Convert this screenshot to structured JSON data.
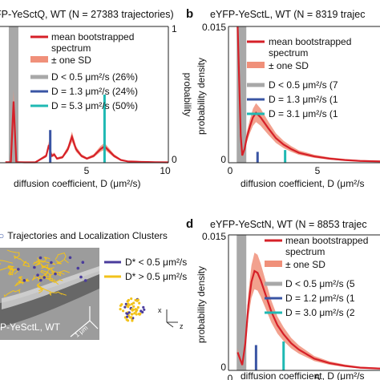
{
  "panels": {
    "a": {
      "letter": "",
      "title": "FP-YeSctQ, WT (N = 27383 trajectories)",
      "ylabel_right": "probability",
      "xlabel": "diffusion coefficient, D (μm²/s)",
      "xtick_labels": [
        "5",
        "10"
      ],
      "ytick_labels": [
        "1",
        "0"
      ],
      "legend": {
        "mean": "mean bootstrapped",
        "mean2": "spectrum",
        "sd": "± one SD",
        "pop1": "D < 0.5   μm²/s (26%)",
        "pop2": "D = 1.3   μm²/s (24%)",
        "pop3": "D = 5.3   μm²/s (50%)"
      }
    },
    "b": {
      "letter": "b",
      "title": "eYFP-YeSctL, WT (N = 8319 trajec",
      "ylabel": "probability density",
      "xlabel": "diffusion coefficient, D (μm²/s",
      "xtick_labels": [
        "0",
        "5"
      ],
      "ytick_labels": [
        "0.015",
        "0"
      ],
      "legend": {
        "mean": "mean bootstrapped",
        "mean2": "spectrum",
        "sd": "± one SD",
        "pop1": "D < 0.5   μm²/s (7",
        "pop2": "D = 1.3   μm²/s (1",
        "pop3": "D = 3.1   μm²/s (1"
      }
    },
    "c": {
      "title": "Trajectories and Localization Clusters",
      "legend1": "D* < 0.5 μm²/s",
      "legend2": "D* > 0.5 μm²/s",
      "cell_label": "P-YeSctL, WT",
      "scale_label": "1 μm",
      "axis_x": "x",
      "axis_z": "z"
    },
    "d": {
      "letter": "d",
      "title": "eYFP-YeSctN, WT (N = 8853 trajec",
      "ylabel": "probability density",
      "xlabel": "diffusion coefficient, D (μm²/s",
      "xtick_labels": [
        "0",
        "5"
      ],
      "ytick_labels": [
        "0.015",
        "0"
      ],
      "legend": {
        "mean": "mean bootstrapped",
        "mean2": "spectrum",
        "sd": "± one SD",
        "pop1": "D < 0.5   μm²/s (5",
        "pop2": "D = 1.2   μm²/s (1",
        "pop3": "D = 3.0   μm²/s (2"
      }
    }
  },
  "colors": {
    "mean": "#d62028",
    "sd": "#f0907a",
    "gray": "#a8a8a8",
    "blue": "#3a55a4",
    "teal": "#1fb9b3",
    "yellow": "#f2c21b",
    "purple": "#4a3c9c"
  },
  "chart_data": [
    {
      "panel": "a",
      "type": "line",
      "xlim": [
        -2.4,
        10
      ],
      "ylim_right": [
        0,
        1
      ],
      "xlabel": "diffusion coefficient, D (μm²/s)",
      "ylabel": "probability",
      "series": [
        {
          "name": "mean bootstrapped spectrum",
          "x": [
            -2.0,
            -1.6,
            -1.4,
            -1.2,
            -1.0,
            -0.6,
            0.2,
            1.0,
            1.2,
            1.4,
            1.6,
            1.8,
            2.2,
            2.6,
            2.9,
            3.2,
            3.6,
            4.0,
            4.5,
            5.0,
            5.3,
            5.6,
            6.0,
            6.5,
            7.0,
            7.5,
            8.0,
            8.5,
            9.0,
            10.0
          ],
          "y": [
            0.004,
            0.004,
            0.45,
            0.004,
            0.004,
            0.003,
            0.003,
            0.05,
            0.13,
            0.05,
            0.06,
            0.03,
            0.04,
            0.1,
            0.19,
            0.1,
            0.05,
            0.03,
            0.05,
            0.1,
            0.12,
            0.09,
            0.05,
            0.02,
            0.01,
            0.008,
            0.006,
            0.005,
            0.004,
            0.003
          ]
        }
      ],
      "populations": [
        {
          "label": "D < 0.5",
          "percent": 26,
          "x": -1.4,
          "height": 0.26
        },
        {
          "label": "D = 1.3",
          "percent": 24,
          "x": 1.3,
          "height": 0.24
        },
        {
          "label": "D = 5.3",
          "percent": 50,
          "x": 5.3,
          "height": 0.5
        }
      ]
    },
    {
      "panel": "b",
      "type": "line",
      "xlim": [
        -0.6,
        9.3
      ],
      "ylim": [
        0,
        0.015
      ],
      "xlabel": "diffusion coefficient, D (μm²/s",
      "ylabel": "probability density",
      "series": [
        {
          "name": "mean bootstrapped spectrum",
          "x": [
            0.0,
            0.1,
            0.2,
            0.3,
            0.45,
            0.6,
            0.8,
            1.0,
            1.2,
            1.5,
            2.0,
            2.5,
            3.0,
            3.5,
            4.0,
            5.0,
            6.0,
            7.0,
            8.0,
            9.3
          ],
          "y": [
            0.015,
            0.009,
            0.003,
            0.0008,
            0.0015,
            0.0028,
            0.004,
            0.005,
            0.0055,
            0.005,
            0.0038,
            0.0027,
            0.002,
            0.0015,
            0.0011,
            0.0007,
            0.00045,
            0.0003,
            0.0002,
            0.00015
          ]
        }
      ],
      "populations": [
        {
          "label": "D < 0.5",
          "x": 0.25,
          "height": 0.015
        },
        {
          "label": "D = 1.3",
          "x": 1.3,
          "height": 0.0012
        },
        {
          "label": "D = 3.1",
          "x": 3.1,
          "height": 0.0014
        }
      ]
    },
    {
      "panel": "d",
      "type": "line",
      "xlim": [
        -0.6,
        9.3
      ],
      "ylim": [
        0,
        0.015
      ],
      "xlabel": "diffusion coefficient, D (μm²/s",
      "ylabel": "probability density",
      "series": [
        {
          "name": "mean bootstrapped spectrum",
          "x": [
            0.0,
            0.3,
            0.5,
            0.7,
            0.9,
            1.1,
            1.3,
            1.5,
            1.8,
            2.2,
            2.6,
            3.0,
            3.5,
            4.0,
            5.0,
            6.0,
            7.0,
            8.0,
            9.3
          ],
          "y": [
            0.002,
            0.0006,
            0.003,
            0.0072,
            0.0098,
            0.011,
            0.0108,
            0.01,
            0.0085,
            0.0065,
            0.005,
            0.004,
            0.003,
            0.0023,
            0.0013,
            0.0008,
            0.0005,
            0.0003,
            0.0002
          ]
        }
      ],
      "populations": [
        {
          "label": "D < 0.5",
          "x": 0.25,
          "height": 0.015
        },
        {
          "label": "D = 1.2",
          "x": 1.2,
          "height": 0.0028
        },
        {
          "label": "D = 3.0",
          "x": 3.0,
          "height": 0.0032
        }
      ]
    }
  ]
}
